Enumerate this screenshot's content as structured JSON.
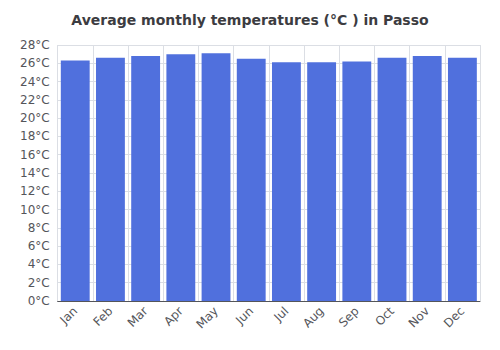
{
  "chart_data": {
    "type": "bar",
    "title": "Average monthly temperatures (°C ) in Passo",
    "categories": [
      "Jan",
      "Feb",
      "Mar",
      "Apr",
      "May",
      "Jun",
      "Jul",
      "Aug",
      "Sep",
      "Oct",
      "Nov",
      "Dec"
    ],
    "values": [
      26.3,
      26.6,
      26.8,
      27.0,
      27.1,
      26.5,
      26.1,
      26.1,
      26.2,
      26.6,
      26.8,
      26.6
    ],
    "ylim": [
      0,
      28
    ],
    "yticks": [
      {
        "value": 0,
        "label": "0°C"
      },
      {
        "value": 2,
        "label": "2°C"
      },
      {
        "value": 4,
        "label": "4°C"
      },
      {
        "value": 6,
        "label": "6°C"
      },
      {
        "value": 8,
        "label": "8°C"
      },
      {
        "value": 10,
        "label": "10°C"
      },
      {
        "value": 12,
        "label": "12°C"
      },
      {
        "value": 14,
        "label": "14°C"
      },
      {
        "value": 16,
        "label": "16°C"
      },
      {
        "value": 18,
        "label": "18°C"
      },
      {
        "value": 20,
        "label": "20°C"
      },
      {
        "value": 22,
        "label": "22°C"
      },
      {
        "value": 24,
        "label": "24°C"
      },
      {
        "value": 26,
        "label": "26°C"
      },
      {
        "value": 28,
        "label": "28°C"
      }
    ],
    "grid": true
  }
}
